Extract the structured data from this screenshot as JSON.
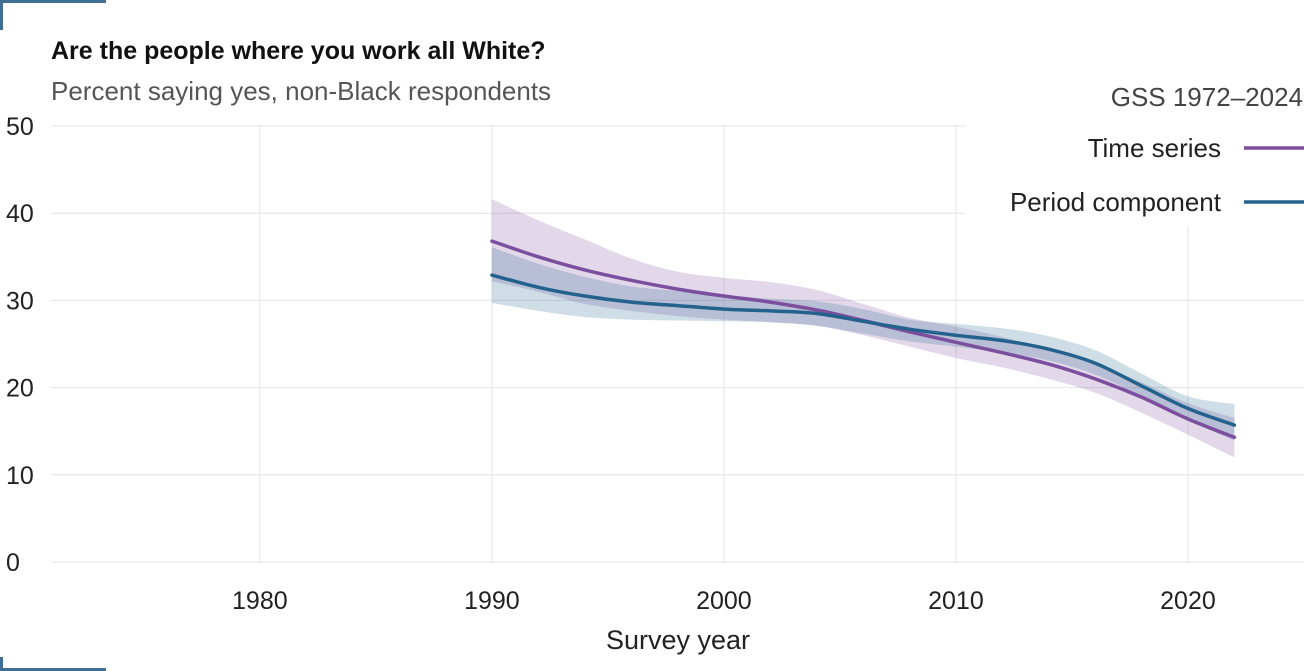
{
  "title": "Are the people where you work all White?",
  "subtitle": "Percent saying yes, non-Black respondents",
  "colors": {
    "time_series": "#7b4f9e",
    "period_component": "#24628d",
    "grid": "#e4e4e4",
    "accent": "#3f6f95"
  },
  "chart_data": {
    "type": "line",
    "xlabel": "Survey year",
    "ylabel": "",
    "xlim": [
      1971,
      2025
    ],
    "ylim": [
      0,
      50
    ],
    "x_ticks": [
      1980,
      1990,
      2000,
      2010,
      2020
    ],
    "y_ticks": [
      0,
      10,
      20,
      30,
      40,
      50
    ],
    "grid": true,
    "legend": {
      "title": "GSS 1972–2024",
      "position": "top-right"
    },
    "series": [
      {
        "name": "Time series",
        "color": "#7b4f9e",
        "x": [
          1990,
          1992,
          1994,
          1996,
          1998,
          2000,
          2002,
          2004,
          2006,
          2008,
          2010,
          2012,
          2014,
          2016,
          2018,
          2020,
          2022
        ],
        "y": [
          36.8,
          35.0,
          33.5,
          32.3,
          31.3,
          30.5,
          29.8,
          28.9,
          27.7,
          26.4,
          25.2,
          24.0,
          22.7,
          21.0,
          18.9,
          16.4,
          14.3
        ],
        "lower": [
          32.2,
          31.0,
          29.6,
          28.8,
          28.2,
          27.8,
          27.5,
          27.1,
          26.0,
          24.7,
          23.4,
          22.3,
          21.0,
          19.4,
          17.1,
          14.6,
          12.0
        ],
        "upper": [
          41.6,
          39.2,
          37.0,
          34.8,
          33.3,
          32.6,
          32.1,
          31.2,
          29.6,
          28.0,
          27.0,
          25.8,
          24.3,
          22.6,
          20.6,
          18.2,
          16.5
        ]
      },
      {
        "name": "Period component",
        "color": "#24628d",
        "x": [
          1990,
          1992,
          1994,
          1996,
          1998,
          2000,
          2002,
          2004,
          2006,
          2008,
          2010,
          2012,
          2014,
          2016,
          2018,
          2020,
          2022
        ],
        "y": [
          32.9,
          31.5,
          30.5,
          29.8,
          29.4,
          29.0,
          28.8,
          28.5,
          27.6,
          26.7,
          26.0,
          25.4,
          24.4,
          22.8,
          20.2,
          17.6,
          15.7
        ],
        "lower": [
          29.7,
          28.8,
          28.1,
          27.8,
          27.7,
          27.6,
          27.5,
          27.1,
          26.2,
          25.3,
          24.7,
          24.0,
          23.1,
          21.5,
          19.0,
          16.3,
          13.9
        ],
        "upper": [
          36.1,
          34.2,
          32.7,
          31.6,
          31.1,
          30.6,
          30.2,
          29.9,
          29.0,
          27.8,
          27.3,
          26.8,
          25.9,
          24.3,
          21.6,
          19.0,
          18.1
        ]
      }
    ]
  }
}
